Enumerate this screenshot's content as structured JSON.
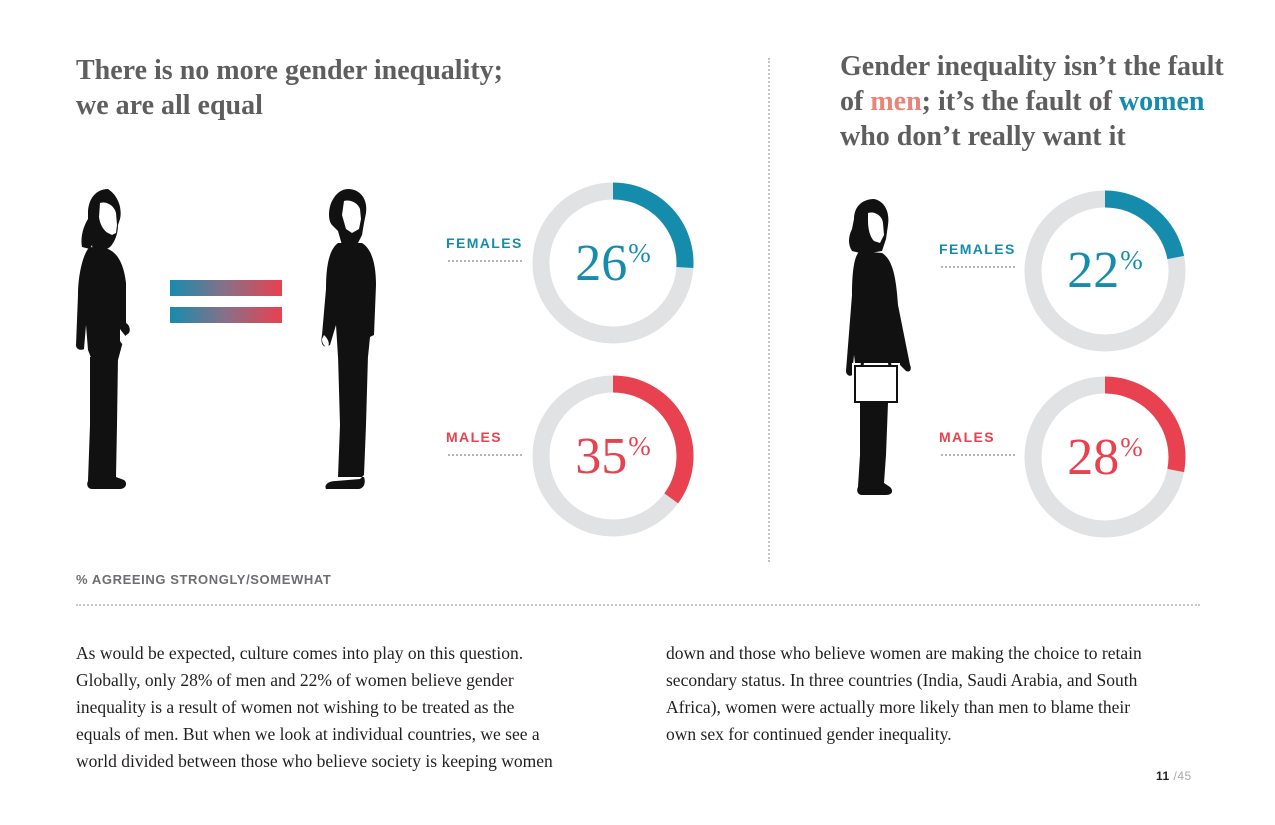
{
  "left_panel": {
    "headline_line1": "There is no more gender inequality;",
    "headline_line2": "we are all equal"
  },
  "right_panel": {
    "headline_part1": "Gender inequality isn’t the fault",
    "headline_part2": "of ",
    "headline_men": "men",
    "headline_part3": "; it’s the fault of ",
    "headline_women": "women",
    "headline_part4": "who don’t really want it"
  },
  "chart_data": [
    {
      "type": "pie",
      "title": "There is no more gender inequality; we are all equal",
      "series": [
        {
          "name": "FEMALES",
          "value": 26,
          "label": "26",
          "unit": "%"
        },
        {
          "name": "MALES",
          "value": 35,
          "label": "35",
          "unit": "%"
        }
      ]
    },
    {
      "type": "pie",
      "title": "Gender inequality isn’t the fault of men; it’s the fault of women who don’t really want it",
      "series": [
        {
          "name": "FEMALES",
          "value": 22,
          "label": "22",
          "unit": "%"
        },
        {
          "name": "MALES",
          "value": 28,
          "label": "28",
          "unit": "%"
        }
      ]
    }
  ],
  "colors": {
    "female": "#168cad",
    "male": "#e8414f",
    "track": "#e1e2e3",
    "silhouette": "#111111"
  },
  "icons": {
    "woman": "woman-silhouette-icon",
    "man": "man-silhouette-icon",
    "equals": "equals-sign-icon",
    "woman_bag": "woman-with-bag-silhouette-icon"
  },
  "footnote": "% AGREEING STRONGLY/SOMEWHAT",
  "body": {
    "col1": [
      "As would be expected, culture comes into play on this question.",
      "Globally, only 28% of men and 22% of women believe gender",
      "inequality is a result of women not wishing to be treated as the",
      "equals of men. But when we look at individual countries, we see a",
      "world divided between those who believe society is keeping women"
    ],
    "col2": [
      "down and those who believe women are making the choice to retain",
      "secondary status. In three countries (India, Saudi Arabia, and South",
      "Africa), women were actually more likely than men to blame their",
      "own sex for continued gender inequality."
    ]
  },
  "pagination": {
    "current": "11",
    "total": "/45"
  }
}
